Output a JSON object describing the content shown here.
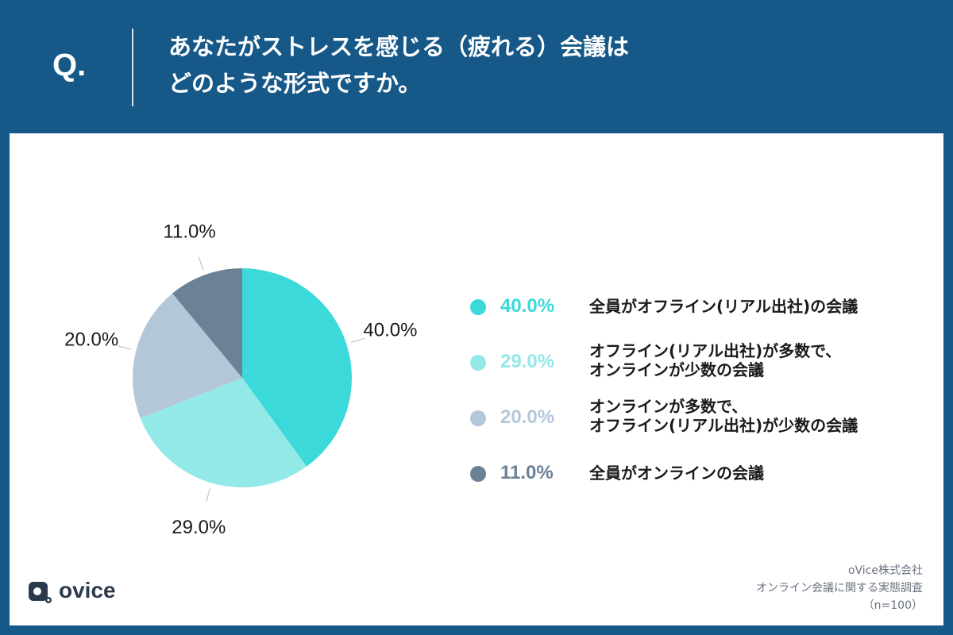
{
  "header": {
    "q_label": "Q.",
    "title_line1": "あなたがストレスを感じる（疲れる）会議は",
    "title_line2": "どのような形式ですか。"
  },
  "chart_data": {
    "type": "pie",
    "title": "",
    "slices": [
      {
        "label": "全員がオフライン(リアル出社)の会議",
        "label_lines": [
          "全員がオフライン(リアル出社)の会議"
        ],
        "value": 40.0,
        "display": "40.0%",
        "color": "#3bd9d9"
      },
      {
        "label": "オフライン(リアル出社)が多数で、オンラインが少数の会議",
        "label_lines": [
          "オフライン(リアル出社)が多数で、",
          "オンラインが少数の会議"
        ],
        "value": 29.0,
        "display": "29.0%",
        "color": "#93e8e8"
      },
      {
        "label": "オンラインが多数で、オフライン(リアル出社)が少数の会議",
        "label_lines": [
          "オンラインが多数で、",
          "オフライン(リアル出社)が少数の会議"
        ],
        "value": 20.0,
        "display": "20.0%",
        "color": "#b4c7d9"
      },
      {
        "label": "全員がオンラインの会議",
        "label_lines": [
          "全員がオンラインの会議"
        ],
        "value": 11.0,
        "display": "11.0%",
        "color": "#6b8196"
      }
    ],
    "legend_placement": "right"
  },
  "footer": {
    "logo_text": "ovice",
    "source_line1": "oVice株式会社",
    "source_line2": "オンライン会議に関する実態調査",
    "source_line3": "（n=100）"
  }
}
